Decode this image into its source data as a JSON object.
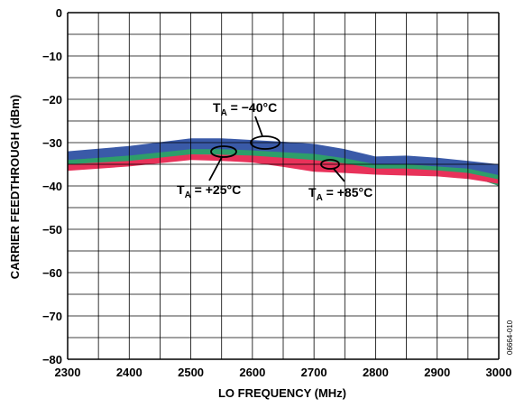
{
  "chart_data": {
    "type": "line",
    "title": "",
    "xlabel": "LO FREQUENCY (MHz)",
    "ylabel": "CARRIER FEEDTHROUGH (dBm)",
    "xlim": [
      2300,
      3000
    ],
    "ylim": [
      -80,
      0
    ],
    "xticks": [
      "2300",
      "2400",
      "2500",
      "2600",
      "2700",
      "2800",
      "2900",
      "3000"
    ],
    "yticks": [
      "0",
      "−10",
      "−20",
      "−30",
      "−40",
      "−50",
      "−60",
      "−70",
      "−80"
    ],
    "grid": true,
    "figure_id": "06664-010",
    "series": [
      {
        "name": "T_A = −40°C",
        "color": "#3a5aa8",
        "x": [
          2300,
          2400,
          2500,
          2550,
          2600,
          2650,
          2700,
          2750,
          2800,
          2850,
          2900,
          2950,
          3000
        ],
        "upper": [
          -32.0,
          -30.8,
          -29.0,
          -29.0,
          -29.4,
          -29.8,
          -30.3,
          -31.5,
          -33.2,
          -33.0,
          -33.5,
          -34.2,
          -35.0
        ],
        "lower": [
          -34.5,
          -33.4,
          -31.7,
          -31.7,
          -31.9,
          -32.6,
          -33.3,
          -34.1,
          -35.5,
          -35.6,
          -36.0,
          -37.0,
          -40.0
        ]
      },
      {
        "name": "T_A = +25°C",
        "color": "#2e9e6a",
        "x": [
          2300,
          2400,
          2500,
          2550,
          2600,
          2650,
          2700,
          2750,
          2800,
          2850,
          2900,
          2950,
          3000
        ],
        "upper": [
          -34.0,
          -33.0,
          -31.5,
          -31.5,
          -31.8,
          -32.2,
          -32.6,
          -33.6,
          -35.0,
          -35.0,
          -35.5,
          -36.0,
          -37.5
        ],
        "lower": [
          -35.3,
          -34.4,
          -32.8,
          -32.8,
          -33.1,
          -33.6,
          -34.2,
          -35.0,
          -36.1,
          -36.2,
          -36.8,
          -37.6,
          -40.0
        ]
      },
      {
        "name": "T_A = +85°C",
        "color": "#e8325a",
        "x": [
          2300,
          2400,
          2500,
          2550,
          2600,
          2650,
          2700,
          2750,
          2800,
          2850,
          2900,
          2950,
          3000
        ],
        "upper": [
          -35.0,
          -34.2,
          -32.7,
          -32.8,
          -33.0,
          -33.5,
          -34.0,
          -34.8,
          -36.0,
          -36.0,
          -36.4,
          -37.0,
          -38.5
        ],
        "lower": [
          -36.5,
          -35.5,
          -34.0,
          -34.2,
          -34.6,
          -35.6,
          -36.7,
          -37.0,
          -37.4,
          -37.6,
          -37.8,
          -38.4,
          -39.5
        ]
      }
    ],
    "annotations": [
      {
        "label_main": "T",
        "label_sub": "A",
        "label_rest": " = −40°C",
        "series": 0
      },
      {
        "label_main": "T",
        "label_sub": "A",
        "label_rest": " = +25°C",
        "series": 1
      },
      {
        "label_main": "T",
        "label_sub": "A",
        "label_rest": " = +85°C",
        "series": 2
      }
    ]
  }
}
